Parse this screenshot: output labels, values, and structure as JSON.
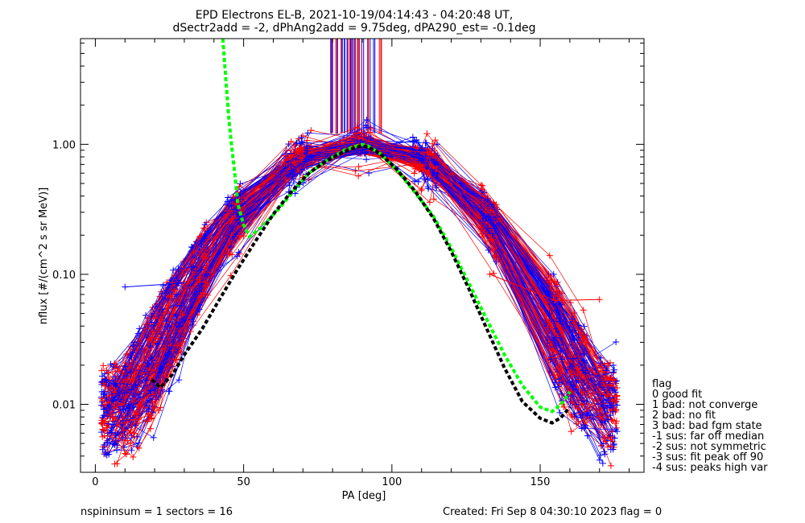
{
  "chart_data": {
    "type": "line",
    "title": "EPD Electrons EL-B, 2021-10-19/04:14:43 - 04:20:48 UT,",
    "subtitle": "dSectr2add = -2, dPhAng2add = 9.75deg, dPA290_est=  -0.1deg",
    "xlabel": "PA [deg]",
    "ylabel": "nflux [#/(cm^2 s sr MeV)]",
    "xlim": [
      -5,
      185
    ],
    "ylim": [
      0.003,
      6.5
    ],
    "yscale": "log",
    "xticks": [
      "0",
      "50",
      "100",
      "150"
    ],
    "xtick_values": [
      0,
      50,
      100,
      150
    ],
    "yticks": [
      "0.01",
      "0.10",
      "1.00"
    ],
    "ytick_values": [
      0.01,
      0.1,
      1.0
    ],
    "series": [
      {
        "color": "#00ff00",
        "style": "dashed",
        "x": [
          43,
          44,
          45,
          46,
          47,
          48,
          50,
          52,
          56,
          62,
          68,
          72,
          78,
          84,
          88,
          90,
          92,
          96,
          102,
          108,
          114,
          120,
          126,
          132,
          138,
          144,
          150,
          154,
          157,
          160
        ],
        "y": [
          6.5,
          3.2,
          1.6,
          0.95,
          0.6,
          0.35,
          0.24,
          0.195,
          0.23,
          0.32,
          0.47,
          0.6,
          0.75,
          0.9,
          0.97,
          1.0,
          0.97,
          0.85,
          0.62,
          0.42,
          0.28,
          0.16,
          0.085,
          0.045,
          0.024,
          0.014,
          0.0095,
          0.0088,
          0.01,
          0.0125
        ]
      },
      {
        "color": "#000000",
        "style": "dashed",
        "x": [
          19,
          22,
          26,
          30,
          36,
          42,
          48,
          54,
          60,
          66,
          72,
          78,
          84,
          88,
          90,
          92,
          96,
          102,
          108,
          114,
          120,
          126,
          132,
          138,
          144,
          150,
          154,
          157,
          160
        ],
        "y": [
          0.0155,
          0.0135,
          0.017,
          0.024,
          0.038,
          0.065,
          0.11,
          0.18,
          0.29,
          0.43,
          0.6,
          0.75,
          0.88,
          0.95,
          0.97,
          0.95,
          0.85,
          0.63,
          0.43,
          0.27,
          0.15,
          0.077,
          0.038,
          0.019,
          0.0105,
          0.0078,
          0.0072,
          0.0079,
          0.0095
        ]
      },
      {
        "color": "#ff0000",
        "style": "solid",
        "x": [
          133,
          155,
          170
        ],
        "y": [
          0.1,
          0.063,
          0.064
        ]
      },
      {
        "color": "#0000ff",
        "style": "solid",
        "x": [
          10,
          28
        ],
        "y": [
          0.08,
          0.085
        ]
      }
    ],
    "fan_curves": {
      "red_count": 90,
      "blue_count": 90,
      "red_color": "#ff0000",
      "blue_color": "#0000ff",
      "peak_pa": 90
    },
    "peak_markers": {
      "x_range": [
        79,
        97
      ],
      "y_range": [
        1.2,
        6.5
      ],
      "colors": [
        "#ff0000",
        "#0000ff"
      ]
    },
    "legend": {
      "title": "flag",
      "placement": "right",
      "items": [
        "0 good fit",
        "1 bad: not converge",
        "2 bad: no fit",
        "3 bad: bad fgm state",
        "-1 sus: far off median",
        "-2 sus: not symmetric",
        "-3 sus: fit peak off 90",
        "-4 sus: peaks high var"
      ]
    },
    "grid": false
  },
  "footer": {
    "left": "nspininsum =  1  sectors = 16",
    "right": "Created: Fri Sep  8 04:30:10 2023   flag = 0"
  }
}
